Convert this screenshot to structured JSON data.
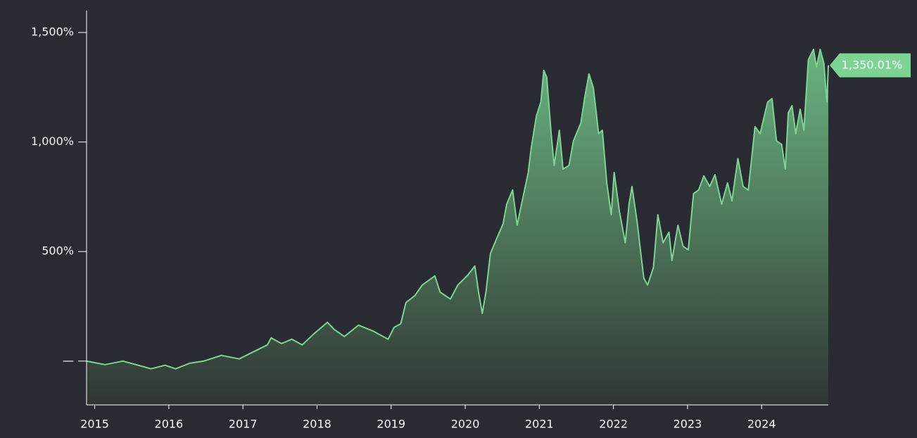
{
  "chart_data": {
    "type": "area",
    "x": [
      2014.89,
      2015.14,
      2015.38,
      2015.62,
      2015.76,
      2015.95,
      2016.09,
      2016.28,
      2016.47,
      2016.71,
      2016.95,
      2017.14,
      2017.33,
      2017.38,
      2017.52,
      2017.66,
      2017.8,
      2017.95,
      2018.14,
      2018.23,
      2018.37,
      2018.56,
      2018.75,
      2018.96,
      2019.04,
      2019.13,
      2019.2,
      2019.32,
      2019.42,
      2019.59,
      2019.66,
      2019.8,
      2019.9,
      2020.04,
      2020.13,
      2020.18,
      2020.23,
      2020.28,
      2020.34,
      2020.42,
      2020.51,
      2020.56,
      2020.64,
      2020.7,
      2020.77,
      2020.85,
      2020.89,
      2020.96,
      2021.02,
      2021.06,
      2021.1,
      2021.16,
      2021.2,
      2021.27,
      2021.32,
      2021.4,
      2021.46,
      2021.56,
      2021.61,
      2021.67,
      2021.73,
      2021.8,
      2021.85,
      2021.91,
      2021.97,
      2022.01,
      2022.08,
      2022.16,
      2022.21,
      2022.25,
      2022.32,
      2022.37,
      2022.41,
      2022.46,
      2022.54,
      2022.6,
      2022.67,
      2022.75,
      2022.79,
      2022.87,
      2022.94,
      2023.01,
      2023.08,
      2023.15,
      2023.22,
      2023.3,
      2023.37,
      2023.46,
      2023.54,
      2023.6,
      2023.68,
      2023.75,
      2023.82,
      2023.91,
      2023.98,
      2024.08,
      2024.14,
      2024.2,
      2024.27,
      2024.32,
      2024.36,
      2024.41,
      2024.46,
      2024.52,
      2024.57,
      2024.63,
      2024.7,
      2024.74,
      2024.79,
      2024.84,
      2024.88,
      2024.9
    ],
    "values": [
      0,
      -16,
      0,
      -22,
      -35,
      -19,
      -35,
      -10,
      0,
      26,
      10,
      42,
      74,
      106,
      80,
      100,
      74,
      122,
      177,
      145,
      112,
      164,
      138,
      100,
      154,
      170,
      267,
      299,
      347,
      389,
      315,
      283,
      347,
      395,
      434,
      315,
      218,
      315,
      491,
      556,
      626,
      716,
      781,
      620,
      732,
      861,
      973,
      1118,
      1182,
      1327,
      1295,
      1038,
      893,
      1054,
      876,
      893,
      1005,
      1086,
      1198,
      1311,
      1246,
      1038,
      1054,
      813,
      668,
      861,
      684,
      540,
      716,
      797,
      636,
      491,
      379,
      347,
      427,
      668,
      540,
      588,
      459,
      620,
      524,
      508,
      764,
      781,
      845,
      797,
      851,
      716,
      813,
      732,
      925,
      797,
      781,
      1070,
      1038,
      1182,
      1198,
      1005,
      989,
      876,
      1134,
      1166,
      1038,
      1150,
      1054,
      1375,
      1423,
      1343,
      1423,
      1359,
      1182,
      1350.01
    ],
    "color": "#7dd492",
    "xlim": [
      2014.89,
      2024.9
    ],
    "ylim": [
      -200,
      1600
    ],
    "xticks": [
      2015,
      2016,
      2017,
      2018,
      2019,
      2020,
      2021,
      2022,
      2023,
      2024
    ],
    "yticks": [
      {
        "value": 0,
        "label": "—"
      },
      {
        "value": 500,
        "label": "500%"
      },
      {
        "value": 1000,
        "label": "1,000%"
      },
      {
        "value": 1500,
        "label": "1,500%"
      }
    ],
    "end_label": {
      "value": 1350.01,
      "label": "1,350.01%"
    }
  }
}
